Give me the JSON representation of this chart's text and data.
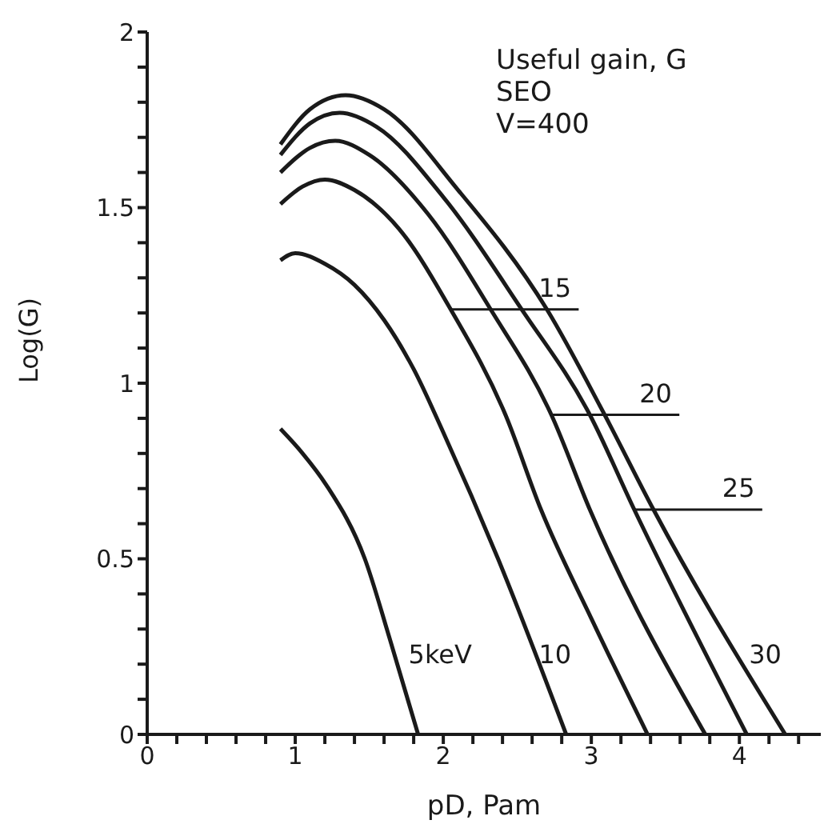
{
  "chart_data": {
    "type": "line",
    "title": "Useful gain, G",
    "subtitle": "SEO",
    "xlabel": "pD,   Pam",
    "ylabel": "Log(G)",
    "xlim": [
      0,
      4.55
    ],
    "ylim": [
      0,
      2
    ],
    "xticks": [
      0,
      {
        "value": 0.2,
        "label": null
      },
      {
        "value": 0.4,
        "label": null
      },
      {
        "value": 0.6,
        "label": null
      },
      {
        "value": 0.8,
        "label": null
      },
      1,
      {
        "value": 1.2,
        "label": null
      },
      {
        "value": 1.4,
        "label": null
      },
      {
        "value": 1.6,
        "label": null
      },
      {
        "value": 1.8,
        "label": null
      },
      2,
      {
        "value": 2.2,
        "label": null
      },
      {
        "value": 2.4,
        "label": null
      },
      {
        "value": 2.6,
        "label": null
      },
      {
        "value": 2.8,
        "label": null
      },
      3,
      {
        "value": 3.2,
        "label": null
      },
      {
        "value": 3.4,
        "label": null
      },
      {
        "value": 3.6,
        "label": null
      },
      {
        "value": 3.8,
        "label": null
      },
      4,
      {
        "value": 4.2,
        "label": null
      },
      {
        "value": 4.4,
        "label": null
      }
    ],
    "yticks": [
      0,
      {
        "value": 0.1,
        "label": null
      },
      {
        "value": 0.2,
        "label": null
      },
      {
        "value": 0.3,
        "label": null
      },
      {
        "value": 0.4,
        "label": null
      },
      0.5,
      {
        "value": 0.6,
        "label": null
      },
      {
        "value": 0.7,
        "label": null
      },
      {
        "value": 0.8,
        "label": null
      },
      {
        "value": 0.9,
        "label": null
      },
      1,
      {
        "value": 1.1,
        "label": null
      },
      {
        "value": 1.2,
        "label": null
      },
      {
        "value": 1.3,
        "label": null
      },
      {
        "value": 1.4,
        "label": null
      },
      1.5,
      {
        "value": 1.6,
        "label": null
      },
      {
        "value": 1.7,
        "label": null
      },
      {
        "value": 1.8,
        "label": null
      },
      {
        "value": 1.9,
        "label": null
      },
      2
    ],
    "marker": "none",
    "line_style": "solid",
    "series": [
      {
        "color": "#1a1a1a",
        "x": [
          0.9,
          1.05,
          1.21,
          1.47,
          1.64,
          1.83
        ],
        "values": [
          0.87,
          0.8,
          0.71,
          0.5,
          0.27,
          0
        ]
      },
      {
        "color": "#1a1a1a",
        "x": [
          0.9,
          1.0,
          1.2,
          1.4,
          1.6,
          1.8,
          2.0,
          2.37,
          2.83
        ],
        "values": [
          1.35,
          1.37,
          1.34,
          1.28,
          1.18,
          1.04,
          0.86,
          0.5,
          0
        ]
      },
      {
        "color": "#1a1a1a",
        "x": [
          0.9,
          1.05,
          1.2,
          1.4,
          1.7,
          2.05,
          2.42,
          2.66,
          3.0,
          3.38
        ],
        "values": [
          1.51,
          1.56,
          1.58,
          1.55,
          1.44,
          1.21,
          0.91,
          0.64,
          0.33,
          0
        ]
      },
      {
        "color": "#1a1a1a",
        "x": [
          0.9,
          1.1,
          1.27,
          1.5,
          1.9,
          2.32,
          2.73,
          2.99,
          3.77
        ],
        "values": [
          1.6,
          1.67,
          1.69,
          1.65,
          1.48,
          1.21,
          0.91,
          0.64,
          0
        ]
      },
      {
        "color": "#1a1a1a",
        "x": [
          0.9,
          1.1,
          1.3,
          1.55,
          2.0,
          2.53,
          2.99,
          3.29,
          4.05
        ],
        "values": [
          1.65,
          1.74,
          1.77,
          1.73,
          1.53,
          1.21,
          0.91,
          0.64,
          0
        ]
      },
      {
        "color": "#1a1a1a",
        "x": [
          0.9,
          1.1,
          1.34,
          1.6,
          2.1,
          2.7,
          3.09,
          3.42,
          4.31
        ],
        "values": [
          1.68,
          1.78,
          1.82,
          1.78,
          1.55,
          1.21,
          0.91,
          0.64,
          0
        ]
      }
    ],
    "annotations": [
      "V=400",
      {
        "text": "5keV",
        "x": 1.7,
        "y": 0.22
      },
      {
        "text": "10",
        "x": 2.58,
        "y": 0.22
      },
      {
        "text": "15",
        "x": 2.05,
        "y": 1.21
      },
      {
        "text": "20",
        "x": 2.73,
        "y": 0.91
      },
      {
        "text": "25",
        "x": 3.29,
        "y": 0.64
      },
      {
        "text": "30",
        "x": 4.0,
        "y": 0.22
      }
    ]
  }
}
